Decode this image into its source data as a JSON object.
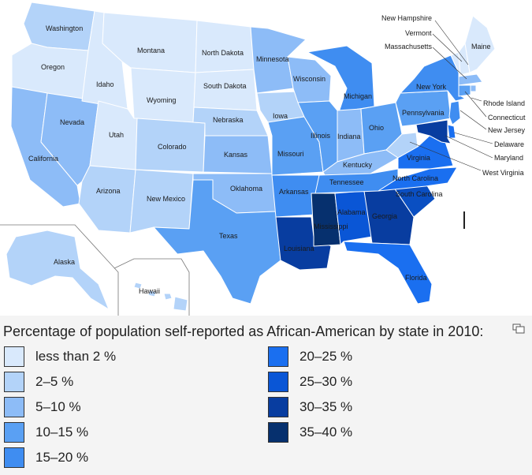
{
  "map": {
    "states": [
      {
        "name": "Washington",
        "color": "#b3d3f9"
      },
      {
        "name": "Oregon",
        "color": "#d9e9fc"
      },
      {
        "name": "Idaho",
        "color": "#d9e9fc"
      },
      {
        "name": "Montana",
        "color": "#d9e9fc"
      },
      {
        "name": "Wyoming",
        "color": "#d9e9fc"
      },
      {
        "name": "North Dakota",
        "color": "#d9e9fc"
      },
      {
        "name": "South Dakota",
        "color": "#d9e9fc"
      },
      {
        "name": "Nebraska",
        "color": "#b3d3f9"
      },
      {
        "name": "Minnesota",
        "color": "#8dbcf7"
      },
      {
        "name": "Iowa",
        "color": "#b3d3f9"
      },
      {
        "name": "Wisconsin",
        "color": "#8dbcf7"
      },
      {
        "name": "Michigan",
        "color": "#3f8df1"
      },
      {
        "name": "Illinois",
        "color": "#5aa0f3"
      },
      {
        "name": "Indiana",
        "color": "#8dbcf7"
      },
      {
        "name": "Ohio",
        "color": "#5aa0f3"
      },
      {
        "name": "Pennsylvania",
        "color": "#5aa0f3"
      },
      {
        "name": "New York",
        "color": "#3f8df1"
      },
      {
        "name": "Maine",
        "color": "#d9e9fc"
      },
      {
        "name": "Nevada",
        "color": "#8dbcf7"
      },
      {
        "name": "Utah",
        "color": "#d9e9fc"
      },
      {
        "name": "Colorado",
        "color": "#b3d3f9"
      },
      {
        "name": "Kansas",
        "color": "#8dbcf7"
      },
      {
        "name": "Missouri",
        "color": "#5aa0f3"
      },
      {
        "name": "Kentucky",
        "color": "#8dbcf7"
      },
      {
        "name": "West Virginia",
        "color": "#b3d3f9"
      },
      {
        "name": "Virginia",
        "color": "#1a6ff0"
      },
      {
        "name": "California",
        "color": "#8dbcf7"
      },
      {
        "name": "Arizona",
        "color": "#b3d3f9"
      },
      {
        "name": "New Mexico",
        "color": "#b3d3f9"
      },
      {
        "name": "Oklahoma",
        "color": "#8dbcf7"
      },
      {
        "name": "Arkansas",
        "color": "#3f8df1"
      },
      {
        "name": "Tennessee",
        "color": "#3f8df1"
      },
      {
        "name": "North Carolina",
        "color": "#1a6ff0"
      },
      {
        "name": "South Carolina",
        "color": "#0a4fc2"
      },
      {
        "name": "Georgia",
        "color": "#083da0"
      },
      {
        "name": "Alabama",
        "color": "#0a56d6"
      },
      {
        "name": "Mississippi",
        "color": "#06306e"
      },
      {
        "name": "Louisiana",
        "color": "#083da0"
      },
      {
        "name": "Texas",
        "color": "#5aa0f3"
      },
      {
        "name": "Florida",
        "color": "#1a6ff0"
      },
      {
        "name": "Alaska",
        "color": "#b3d3f9"
      },
      {
        "name": "Hawaii",
        "color": "#b3d3f9"
      },
      {
        "name": "New Hampshire",
        "color": "#d9e9fc"
      },
      {
        "name": "Vermont",
        "color": "#d9e9fc"
      },
      {
        "name": "Massachusetts",
        "color": "#8dbcf7"
      },
      {
        "name": "Rhode Island",
        "color": "#8dbcf7"
      },
      {
        "name": "Connecticut",
        "color": "#5aa0f3"
      },
      {
        "name": "New Jersey",
        "color": "#3f8df1"
      },
      {
        "name": "Delaware",
        "color": "#1a6ff0"
      },
      {
        "name": "Maryland",
        "color": "#083da0"
      }
    ],
    "callout_labels": [
      "New Hampshire",
      "Vermont",
      "Massachusetts",
      "Maine",
      "Rhode Island",
      "Connecticut",
      "New Jersey",
      "Delaware",
      "Maryland",
      "West Virginia"
    ]
  },
  "caption": "Percentage of population self-reported as African-American by state in 2010:",
  "expand_icon": "enlarge-icon",
  "legend": [
    {
      "label": "less than 2 %",
      "color": "#d9e9fc"
    },
    {
      "label": "2–5 %",
      "color": "#b3d3f9"
    },
    {
      "label": "5–10 %",
      "color": "#8dbcf7"
    },
    {
      "label": "10–15 %",
      "color": "#5aa0f3"
    },
    {
      "label": "15–20 %",
      "color": "#3f8df1"
    },
    {
      "label": "20–25 %",
      "color": "#1a6ff0"
    },
    {
      "label": "25–30 %",
      "color": "#0a56d6"
    },
    {
      "label": "30–35 %",
      "color": "#083da0"
    },
    {
      "label": "35–40 %",
      "color": "#06306e"
    }
  ]
}
